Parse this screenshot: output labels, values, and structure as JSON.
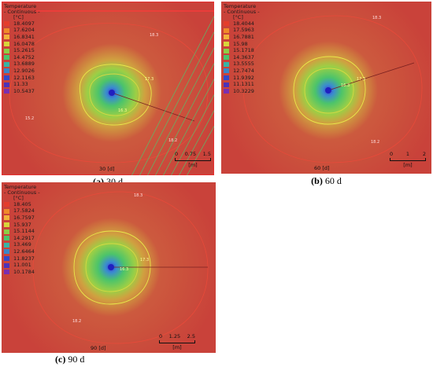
{
  "legend_header": [
    "Temperature",
    "- Continuous -",
    "[°C]"
  ],
  "panels": [
    {
      "id": "a",
      "legend_values": [
        "18.4097",
        "17.6204",
        "16.8341",
        "16.0478",
        "15.2615",
        "14.4752",
        "13.6889",
        "12.9026",
        "12.1163",
        "11.33",
        "10.5437"
      ],
      "scale_ticks": [
        "0",
        "0.75",
        "1.5"
      ],
      "scale_unit": "[m]",
      "time_label": "30 [d]",
      "caption_letter": "(a)",
      "caption_text": "30 d",
      "contour_labels": [
        "18.3",
        "17.3",
        "16.3",
        "15.2",
        "18.2"
      ]
    },
    {
      "id": "b",
      "legend_values": [
        "18.4044",
        "17.5963",
        "16.7881",
        "15.98",
        "15.1718",
        "14.3637",
        "13.5555",
        "12.7474",
        "11.9392",
        "11.1311",
        "10.3229"
      ],
      "scale_ticks": [
        "0",
        "1",
        "2"
      ],
      "scale_unit": "[m]",
      "time_label": "60 [d]",
      "caption_letter": "(b)",
      "caption_text": "60 d",
      "contour_labels": [
        "18.3",
        "17.3",
        "16.3",
        "18.2"
      ]
    },
    {
      "id": "c",
      "legend_values": [
        "18.405",
        "17.5824",
        "16.7597",
        "15.937",
        "15.1144",
        "14.2917",
        "13.469",
        "12.6464",
        "11.8237",
        "11.001",
        "10.1784"
      ],
      "scale_ticks": [
        "0",
        "1.25",
        "2.5"
      ],
      "scale_unit": "[m]",
      "time_label": "90 [d]",
      "caption_letter": "(c)",
      "caption_text": "90 d",
      "contour_labels": [
        "18.3",
        "17.3",
        "16.3",
        "18.2"
      ]
    }
  ],
  "legend_colors": [
    "#e53d2c",
    "#f08a2a",
    "#f2b23a",
    "#d8d63a",
    "#8ccf45",
    "#4cc46a",
    "#38b4a4",
    "#3a86c8",
    "#3447c8",
    "#4d32b8",
    "#7a2eb0"
  ]
}
